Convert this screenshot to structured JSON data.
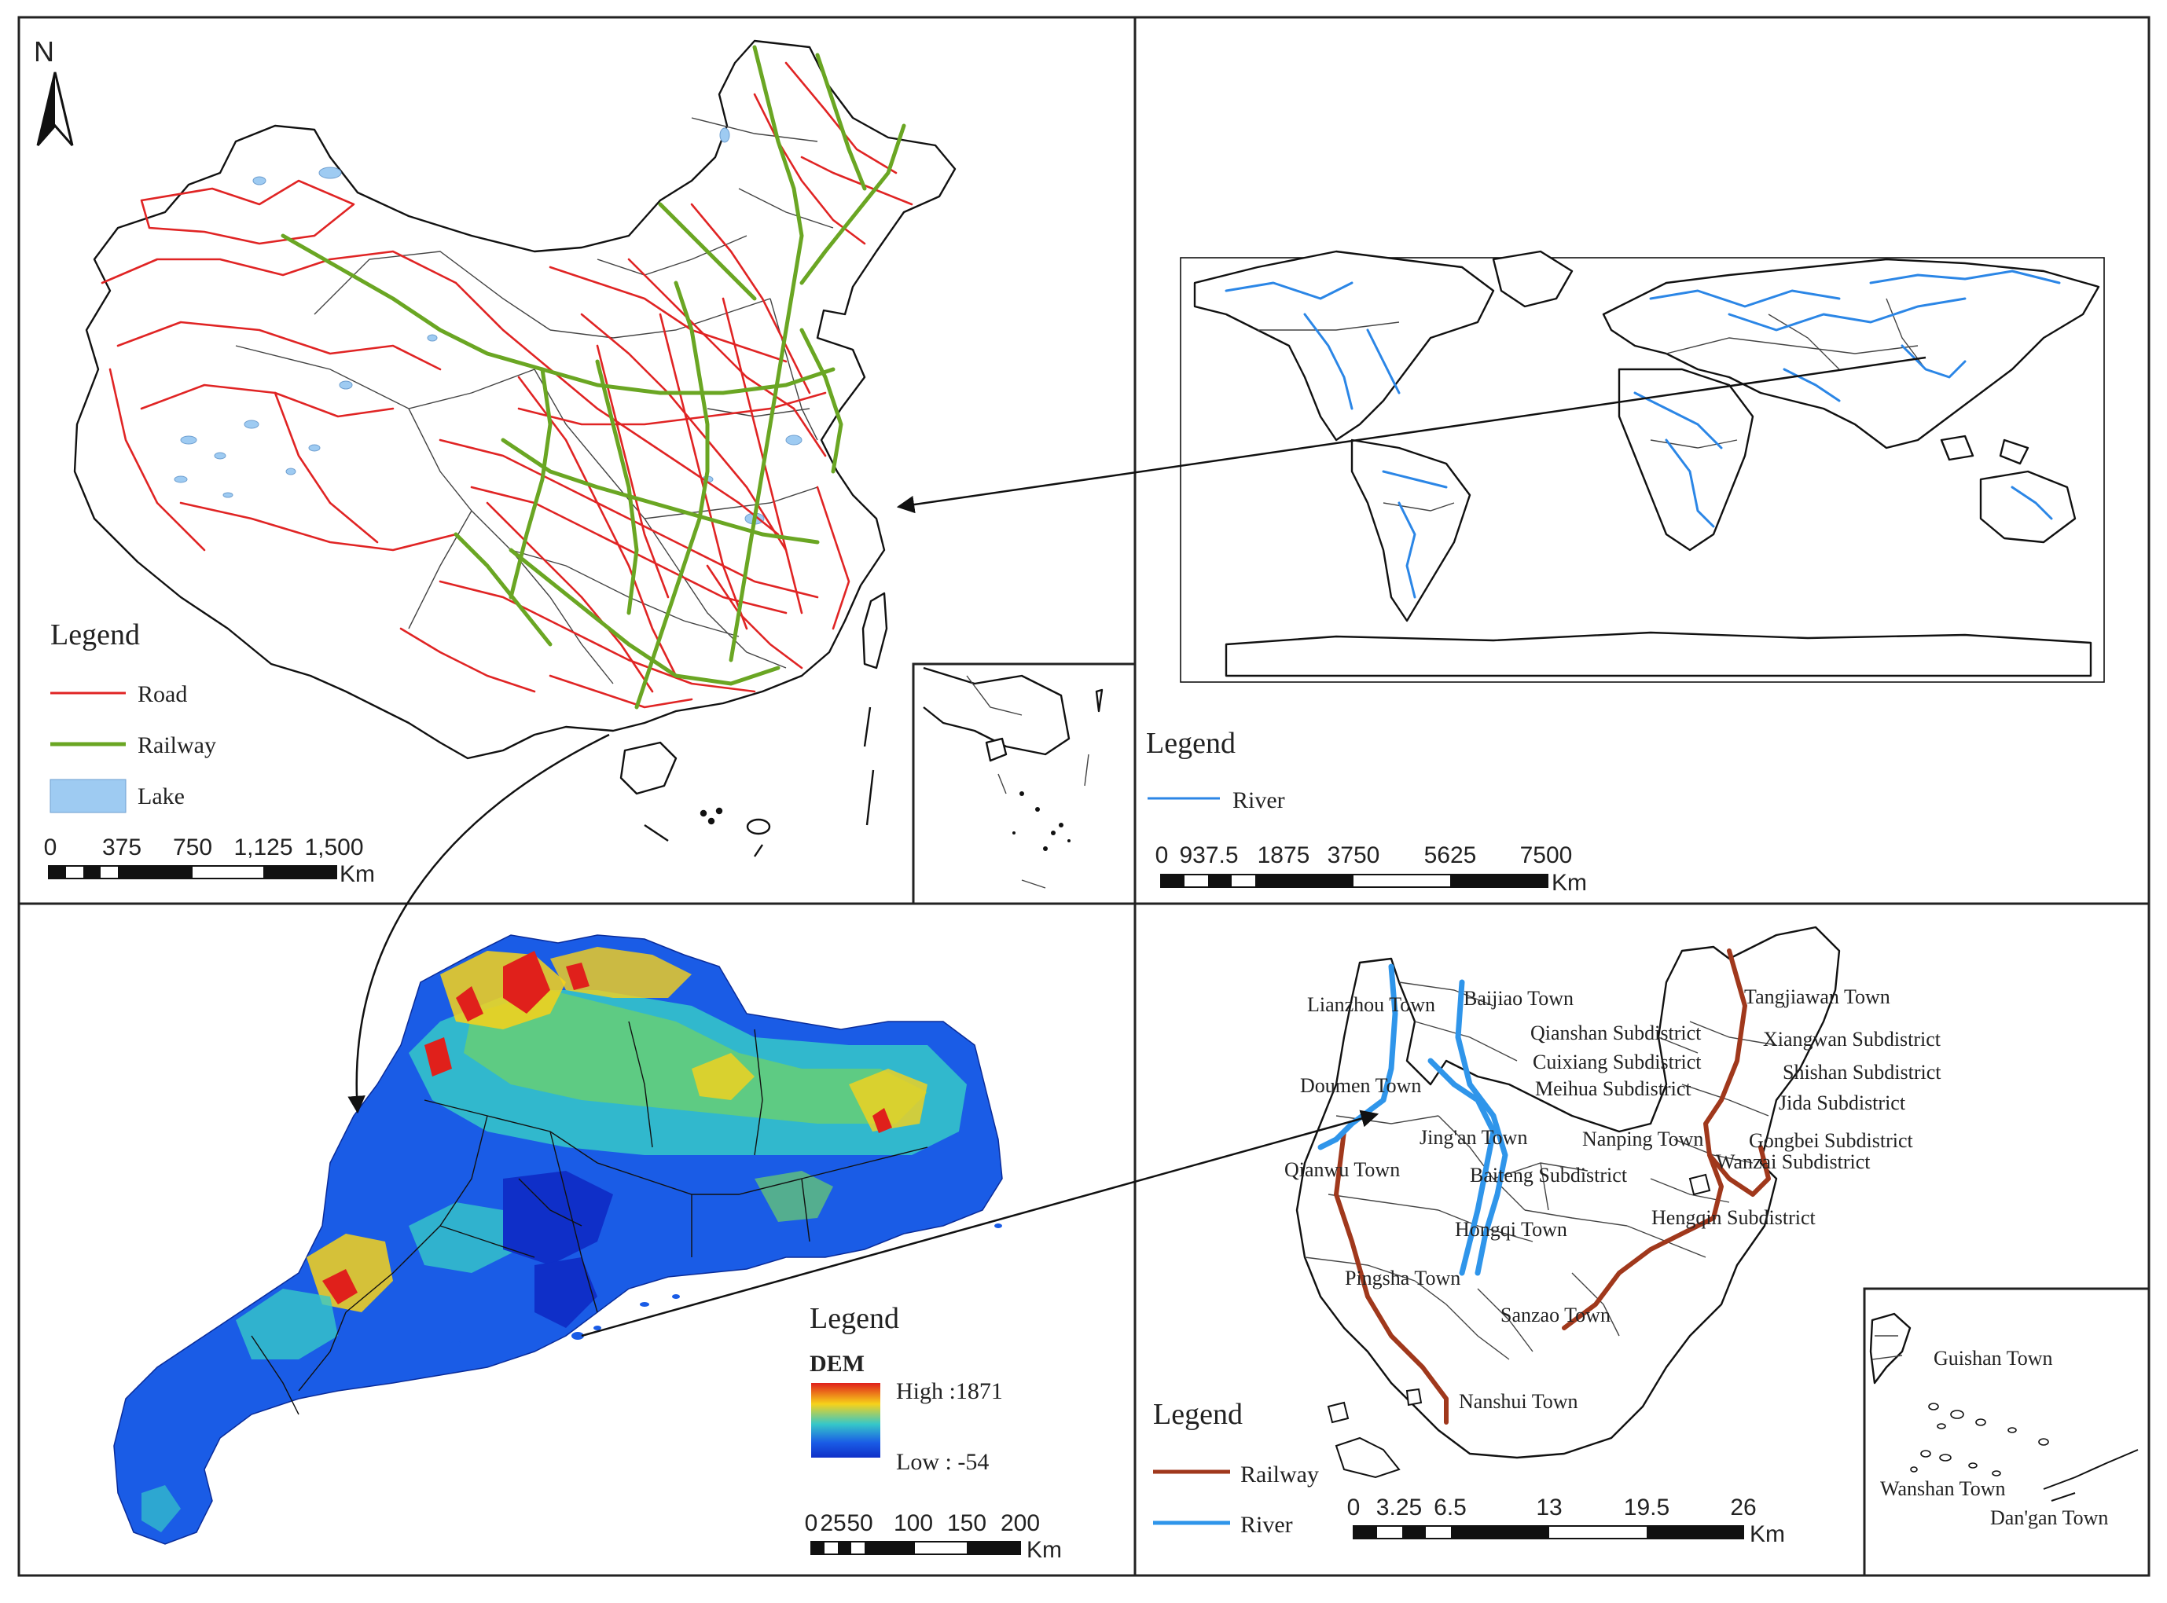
{
  "china_map": {
    "north_label": "N",
    "legend": {
      "title": "Legend",
      "items": [
        {
          "label": "Road",
          "color": "#e02424"
        },
        {
          "label": "Railway",
          "color": "#6aa623"
        },
        {
          "label": "Lake",
          "color": "#9ecbf2"
        }
      ]
    },
    "scale": {
      "ticks": [
        "0",
        "375",
        "750",
        "1,125",
        "1,500"
      ],
      "unit": "Km"
    }
  },
  "world_map": {
    "legend": {
      "title": "Legend",
      "items": [
        {
          "label": "River",
          "color": "#2b86e6"
        }
      ]
    },
    "scale": {
      "ticks": [
        "0",
        "937.5",
        "1875",
        "3750",
        "5625",
        "7500"
      ],
      "unit": "Km"
    }
  },
  "guangdong_map": {
    "legend": {
      "title": "Legend",
      "dem_label": "DEM",
      "high_label": "High :1871",
      "low_label": "Low : -54",
      "colors": [
        "#e0201b",
        "#f7d21a",
        "#36c8c8",
        "#1a5ce6",
        "#0f2fc8"
      ]
    },
    "scale": {
      "ticks": [
        "0",
        "25",
        "50",
        "100",
        "150",
        "200"
      ],
      "unit": "Km"
    }
  },
  "zhuhai_map": {
    "towns": [
      "Lianzhou Town",
      "Baijiao Town",
      "Tangjiawan Town",
      "Qianshan Subdistrict",
      "Xiangwan Subdistrict",
      "Cuixiang Subdistrict",
      "Shishan Subdistrict",
      "Meihua Subdistrict",
      "Jida Subdistrict",
      "Doumen Town",
      "Jing'an Town",
      "Nanping Town",
      "Gongbei Subdistrict",
      "Qianwu Town",
      "Baiteng Subdistrict",
      "Wanzai Subdistrict",
      "Hengqin Subdistrict",
      "Hongqi Town",
      "Pingsha Town",
      "Sanzao Town",
      "Nanshui Town"
    ],
    "inset_towns": [
      "Guishan Town",
      "Wanshan Town",
      "Dan'gan Town"
    ],
    "legend": {
      "title": "Legend",
      "items": [
        {
          "label": "Railway",
          "color": "#a0381c"
        },
        {
          "label": "River",
          "color": "#2f95ea"
        }
      ]
    },
    "scale": {
      "ticks": [
        "0",
        "3.25",
        "6.5",
        "13",
        "19.5",
        "26"
      ],
      "unit": "Km"
    }
  }
}
